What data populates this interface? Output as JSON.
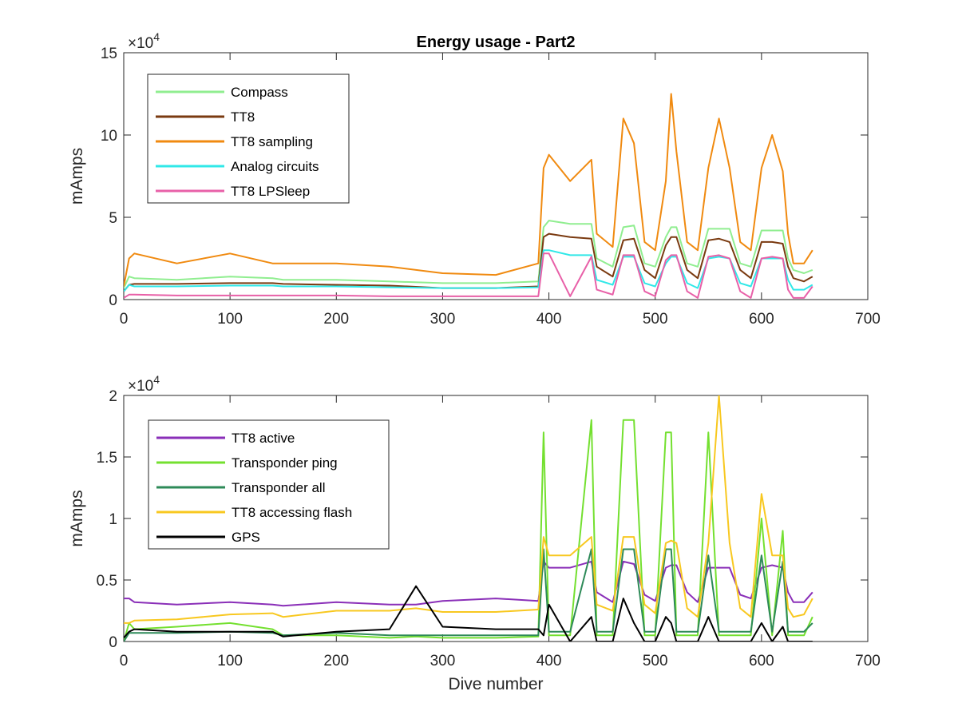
{
  "chart_data": [
    {
      "type": "line",
      "title": "Energy usage - Part2",
      "xlabel": "",
      "ylabel": "mAmps",
      "xlim": [
        0,
        700
      ],
      "ylim": [
        0,
        150000
      ],
      "y_exponent_label": "×10",
      "y_exponent_power": "4",
      "x_ticks": [
        "0",
        "100",
        "200",
        "300",
        "400",
        "500",
        "600",
        "700"
      ],
      "y_ticks": [
        "0",
        "5",
        "10",
        "15"
      ],
      "legend_position": "top-left",
      "x": [
        0,
        5,
        10,
        50,
        100,
        140,
        150,
        200,
        250,
        300,
        350,
        390,
        395,
        400,
        420,
        440,
        445,
        460,
        470,
        480,
        490,
        500,
        510,
        515,
        520,
        530,
        540,
        550,
        560,
        570,
        580,
        590,
        600,
        610,
        620,
        625,
        630,
        640,
        648
      ],
      "series": [
        {
          "name": "Compass",
          "color": "#90ee90",
          "values": [
            7000,
            14000,
            13000,
            12000,
            14000,
            13000,
            12000,
            12000,
            11000,
            10000,
            10000,
            11000,
            44000,
            48000,
            46000,
            46000,
            25000,
            20000,
            44000,
            45000,
            22000,
            20000,
            38000,
            44000,
            44000,
            22000,
            20000,
            43000,
            43000,
            43000,
            22000,
            20000,
            42000,
            42000,
            42000,
            25000,
            18000,
            16000,
            18000
          ]
        },
        {
          "name": "TT8",
          "color": "#7a3a10",
          "values": [
            5000,
            9000,
            9500,
            9500,
            10000,
            10000,
            9500,
            9000,
            8500,
            7000,
            7000,
            8000,
            38000,
            40000,
            38000,
            37000,
            20000,
            14000,
            36000,
            37000,
            18000,
            13000,
            33000,
            38000,
            38000,
            18000,
            13000,
            36000,
            37000,
            35000,
            18000,
            13000,
            35000,
            35000,
            34000,
            20000,
            13000,
            11000,
            14000
          ]
        },
        {
          "name": "TT8 sampling",
          "color": "#f08a10",
          "values": [
            8000,
            25000,
            28000,
            22000,
            28000,
            22000,
            22000,
            22000,
            20000,
            16000,
            15000,
            22000,
            80000,
            88000,
            72000,
            85000,
            40000,
            32000,
            110000,
            95000,
            35000,
            30000,
            72000,
            125000,
            90000,
            35000,
            30000,
            80000,
            110000,
            80000,
            35000,
            30000,
            80000,
            100000,
            78000,
            40000,
            22000,
            22000,
            30000
          ]
        },
        {
          "name": "Analog circuits",
          "color": "#30e8e8",
          "values": [
            5000,
            9000,
            8000,
            8000,
            8500,
            8500,
            8000,
            8000,
            7500,
            7000,
            7000,
            7500,
            30000,
            30000,
            27000,
            27000,
            12000,
            9000,
            26000,
            26000,
            10000,
            8000,
            22000,
            26000,
            26000,
            10000,
            7000,
            25000,
            26000,
            25000,
            10000,
            8000,
            25000,
            25000,
            25000,
            12000,
            6000,
            6000,
            9000
          ]
        },
        {
          "name": "TT8 LPSleep",
          "color": "#e860a8",
          "values": [
            1000,
            3000,
            3000,
            2500,
            2500,
            2500,
            2500,
            2500,
            2000,
            2000,
            2000,
            2000,
            28000,
            28000,
            2000,
            26000,
            6000,
            3000,
            27000,
            27000,
            5000,
            2000,
            24000,
            27000,
            27000,
            5000,
            1000,
            26000,
            27000,
            25000,
            5000,
            1000,
            25000,
            26000,
            25000,
            6000,
            1000,
            1000,
            8000
          ]
        }
      ]
    },
    {
      "type": "line",
      "title": "",
      "xlabel": "Dive number",
      "ylabel": "mAmps",
      "xlim": [
        0,
        700
      ],
      "ylim": [
        0,
        20000
      ],
      "y_exponent_label": "×10",
      "y_exponent_power": "4",
      "x_ticks": [
        "0",
        "100",
        "200",
        "300",
        "400",
        "500",
        "600",
        "700"
      ],
      "y_ticks": [
        "0",
        "0.5",
        "1",
        "1.5",
        "2"
      ],
      "legend_position": "top-left",
      "x": [
        0,
        5,
        10,
        50,
        100,
        140,
        150,
        200,
        250,
        275,
        300,
        350,
        390,
        395,
        400,
        420,
        440,
        445,
        460,
        470,
        480,
        490,
        500,
        510,
        515,
        520,
        530,
        540,
        550,
        560,
        570,
        580,
        590,
        600,
        610,
        620,
        625,
        630,
        640,
        648
      ],
      "series": [
        {
          "name": "TT8 active",
          "color": "#8a2fb8",
          "values": [
            3500,
            3500,
            3200,
            3000,
            3200,
            3000,
            2900,
            3200,
            3000,
            3000,
            3300,
            3500,
            3300,
            6500,
            6000,
            6000,
            6500,
            4000,
            3200,
            6500,
            6300,
            3800,
            3300,
            6000,
            6200,
            6200,
            4000,
            3200,
            6000,
            6000,
            6000,
            3800,
            3500,
            6000,
            6200,
            6000,
            4000,
            3200,
            3200,
            4000
          ]
        },
        {
          "name": "Transponder ping",
          "color": "#74e030",
          "values": [
            0,
            1500,
            1000,
            1200,
            1500,
            1000,
            500,
            500,
            300,
            400,
            300,
            300,
            400,
            17000,
            500,
            500,
            18000,
            500,
            500,
            18000,
            18000,
            500,
            500,
            17000,
            17000,
            500,
            500,
            500,
            17000,
            500,
            500,
            500,
            500,
            10000,
            500,
            9000,
            500,
            500,
            500,
            2000
          ]
        },
        {
          "name": "Transponder all",
          "color": "#2e8a58",
          "values": [
            0,
            700,
            700,
            700,
            800,
            700,
            500,
            700,
            500,
            500,
            500,
            500,
            500,
            7500,
            800,
            800,
            7500,
            800,
            800,
            7500,
            7500,
            800,
            800,
            7500,
            7500,
            800,
            800,
            800,
            7000,
            800,
            800,
            800,
            800,
            7000,
            800,
            6500,
            800,
            800,
            800,
            1500
          ]
        },
        {
          "name": "TT8 accessing flash",
          "color": "#f8c820",
          "values": [
            1500,
            1500,
            1700,
            1800,
            2200,
            2300,
            2000,
            2500,
            2500,
            2700,
            2400,
            2400,
            2600,
            8500,
            7000,
            7000,
            8500,
            3000,
            2500,
            8500,
            8500,
            3000,
            2300,
            8000,
            8200,
            8000,
            2700,
            2000,
            8000,
            20000,
            8000,
            2700,
            2000,
            12000,
            7000,
            7000,
            2700,
            2000,
            2200,
            3500
          ]
        },
        {
          "name": "GPS",
          "color": "#000000",
          "values": [
            300,
            800,
            1000,
            800,
            800,
            800,
            400,
            800,
            1000,
            4500,
            1200,
            1000,
            1000,
            500,
            3000,
            0,
            2000,
            0,
            0,
            3500,
            1500,
            0,
            0,
            2000,
            1500,
            0,
            0,
            0,
            2000,
            0,
            0,
            0,
            0,
            1500,
            0,
            1200,
            0,
            0,
            0,
            0
          ]
        }
      ]
    }
  ]
}
